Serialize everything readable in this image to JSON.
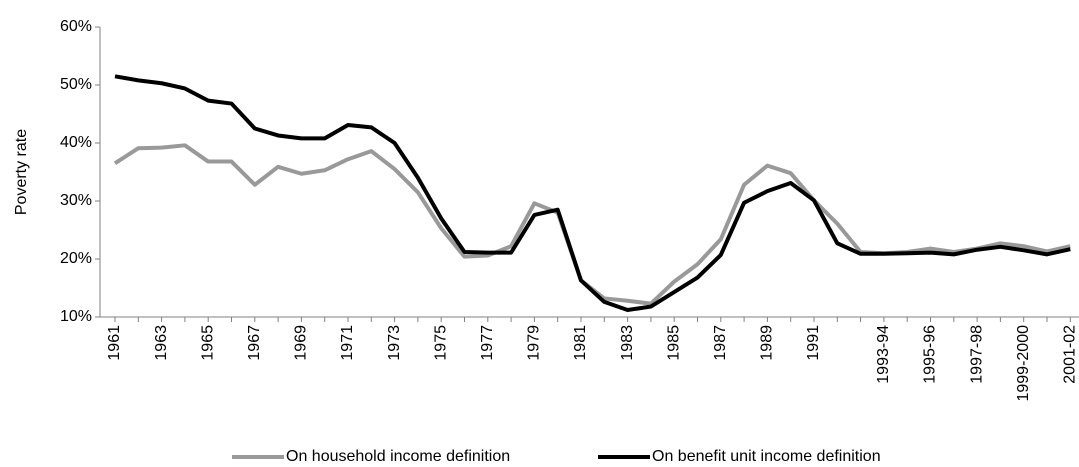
{
  "chart_data": {
    "type": "line",
    "y_label": "Poverty rate",
    "categories": [
      "1961",
      null,
      "1963",
      null,
      "1965",
      null,
      "1967",
      null,
      "1969",
      null,
      "1971",
      null,
      "1973",
      null,
      "1975",
      null,
      "1977",
      null,
      "1979",
      null,
      "1981",
      null,
      "1983",
      null,
      "1985",
      null,
      "1987",
      null,
      "1989",
      null,
      "1991",
      null,
      null,
      "1993-94",
      null,
      "1995-96",
      null,
      "1997-98",
      null,
      "1999-2000",
      null,
      "2001-02"
    ],
    "series": [
      {
        "name": "On household income definition",
        "color": "#999999",
        "values": [
          36.5,
          39.1,
          39.2,
          39.6,
          36.8,
          36.8,
          32.8,
          35.9,
          34.7,
          35.3,
          37.2,
          38.6,
          35.5,
          31.5,
          25.3,
          20.4,
          20.6,
          22.2,
          29.6,
          28.0,
          16.3,
          13.2,
          12.8,
          12.3,
          16.1,
          19.1,
          23.4,
          32.8,
          36.1,
          34.8,
          30.1,
          26.1,
          21.2,
          21.0,
          21.2,
          21.8,
          21.2,
          21.8,
          22.7,
          22.2,
          21.3,
          22.2
        ]
      },
      {
        "name": "On benefit unit income definition",
        "color": "#000000",
        "values": [
          51.5,
          50.8,
          50.3,
          49.4,
          47.3,
          46.8,
          42.5,
          41.3,
          40.8,
          40.8,
          43.1,
          42.7,
          40.0,
          34.0,
          27.0,
          21.2,
          21.1,
          21.1,
          27.6,
          28.5,
          16.3,
          12.6,
          11.2,
          11.8,
          14.3,
          16.8,
          20.7,
          29.7,
          31.7,
          33.1,
          30.1,
          22.7,
          20.9,
          20.9,
          21.0,
          21.1,
          20.8,
          21.6,
          22.1,
          21.5,
          20.8,
          21.7
        ]
      }
    ],
    "ylim": [
      10,
      60
    ],
    "yticks": [
      {
        "value": 10,
        "label": "10%"
      },
      {
        "value": 20,
        "label": "20%"
      },
      {
        "value": 30,
        "label": "30%"
      },
      {
        "value": 40,
        "label": "40%"
      },
      {
        "value": 50,
        "label": "50%"
      },
      {
        "value": 60,
        "label": "60%"
      }
    ],
    "legend": "bottom"
  }
}
